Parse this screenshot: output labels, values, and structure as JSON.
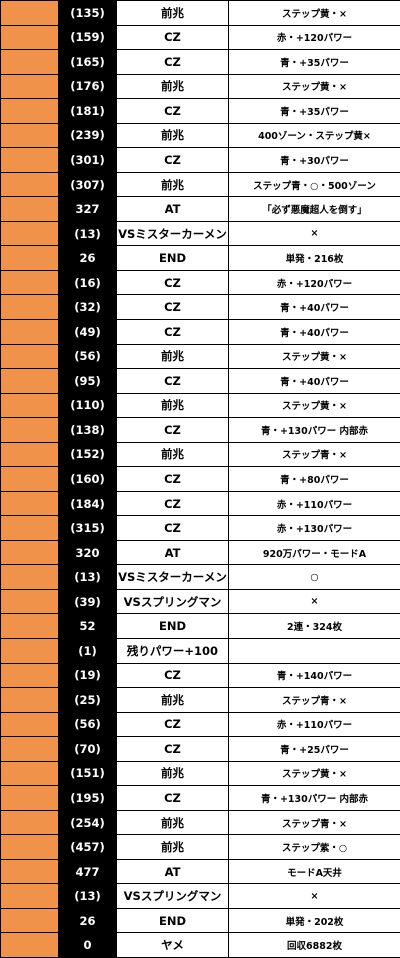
{
  "colors": {
    "accent": "#f0924a",
    "game_cell_bg": "#000000",
    "game_cell_text": "#ffffff",
    "border": "#000000"
  },
  "rows": [
    {
      "game": "(135)",
      "type": "前兆",
      "detail": "ステップ黄・×"
    },
    {
      "game": "(159)",
      "type": "CZ",
      "detail": "赤・+120パワー"
    },
    {
      "game": "(165)",
      "type": "CZ",
      "detail": "青・+35パワー"
    },
    {
      "game": "(176)",
      "type": "前兆",
      "detail": "ステップ黄・×"
    },
    {
      "game": "(181)",
      "type": "CZ",
      "detail": "青・+35パワー"
    },
    {
      "game": "(239)",
      "type": "前兆",
      "detail": "400ゾーン・ステップ黄×"
    },
    {
      "game": "(301)",
      "type": "CZ",
      "detail": "青・+30パワー"
    },
    {
      "game": "(307)",
      "type": "前兆",
      "detail": "ステップ青・○・500ゾーン"
    },
    {
      "game": "327",
      "type": "AT",
      "detail": "「必ず悪魔超人を倒す」"
    },
    {
      "game": "(13)",
      "type": "VSミスターカーメン",
      "detail": "×"
    },
    {
      "game": "26",
      "type": "END",
      "detail": "単発・216枚"
    },
    {
      "game": "(16)",
      "type": "CZ",
      "detail": "赤・+120パワー"
    },
    {
      "game": "(32)",
      "type": "CZ",
      "detail": "青・+40パワー"
    },
    {
      "game": "(49)",
      "type": "CZ",
      "detail": "青・+40パワー"
    },
    {
      "game": "(56)",
      "type": "前兆",
      "detail": "ステップ黄・×"
    },
    {
      "game": "(95)",
      "type": "CZ",
      "detail": "青・+40パワー"
    },
    {
      "game": "(110)",
      "type": "前兆",
      "detail": "ステップ黄・×"
    },
    {
      "game": "(138)",
      "type": "CZ",
      "detail": "青・+130パワー 内部赤"
    },
    {
      "game": "(152)",
      "type": "前兆",
      "detail": "ステップ青・×"
    },
    {
      "game": "(160)",
      "type": "CZ",
      "detail": "青・+80パワー"
    },
    {
      "game": "(184)",
      "type": "CZ",
      "detail": "赤・+110パワー"
    },
    {
      "game": "(315)",
      "type": "CZ",
      "detail": "赤・+130パワー"
    },
    {
      "game": "320",
      "type": "AT",
      "detail": "920万パワー・モードA"
    },
    {
      "game": "(13)",
      "type": "VSミスターカーメン",
      "detail": "○"
    },
    {
      "game": "(39)",
      "type": "VSスプリングマン",
      "detail": "×"
    },
    {
      "game": "52",
      "type": "END",
      "detail": "2連・324枚"
    },
    {
      "game": "(1)",
      "type": "残りパワー+100",
      "detail": ""
    },
    {
      "game": "(19)",
      "type": "CZ",
      "detail": "青・+140パワー"
    },
    {
      "game": "(25)",
      "type": "前兆",
      "detail": "ステップ青・×"
    },
    {
      "game": "(56)",
      "type": "CZ",
      "detail": "赤・+110パワー"
    },
    {
      "game": "(70)",
      "type": "CZ",
      "detail": "青・+25パワー"
    },
    {
      "game": "(151)",
      "type": "前兆",
      "detail": "ステップ黄・×"
    },
    {
      "game": "(195)",
      "type": "CZ",
      "detail": "青・+130パワー 内部赤"
    },
    {
      "game": "(254)",
      "type": "前兆",
      "detail": "ステップ青・×"
    },
    {
      "game": "(457)",
      "type": "前兆",
      "detail": "ステップ紫・○"
    },
    {
      "game": "477",
      "type": "AT",
      "detail": "モードA天井"
    },
    {
      "game": "(13)",
      "type": "VSスプリングマン",
      "detail": "×"
    },
    {
      "game": "26",
      "type": "END",
      "detail": "単発・202枚"
    },
    {
      "game": "0",
      "type": "ヤメ",
      "detail": "回収6882枚"
    }
  ]
}
